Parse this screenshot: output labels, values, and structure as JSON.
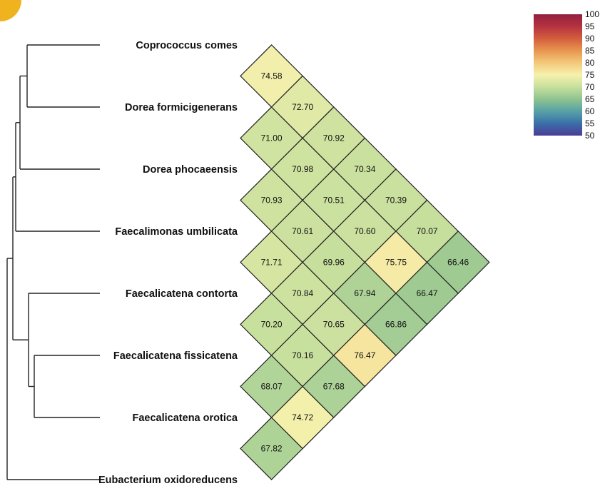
{
  "chart_data": {
    "type": "heatmap",
    "taxa": [
      "Coprococcus comes",
      "Dorea formicigenerans",
      "Dorea phocaeensis",
      "Faecalimonas umbilicata",
      "Faecalicatena contorta",
      "Faecalicatena fissicatena",
      "Faecalicatena orotica",
      "Eubacterium oxidoreducens"
    ],
    "pairs": [
      {
        "i": 0,
        "j": 1,
        "value": 74.58,
        "label": "74.58"
      },
      {
        "i": 1,
        "j": 2,
        "value": 71.0,
        "label": "71.00"
      },
      {
        "i": 0,
        "j": 2,
        "value": 72.7,
        "label": "72.70"
      },
      {
        "i": 2,
        "j": 3,
        "value": 70.93,
        "label": "70.93"
      },
      {
        "i": 1,
        "j": 3,
        "value": 70.98,
        "label": "70.98"
      },
      {
        "i": 0,
        "j": 3,
        "value": 70.92,
        "label": "70.92"
      },
      {
        "i": 3,
        "j": 4,
        "value": 71.71,
        "label": "71.71"
      },
      {
        "i": 2,
        "j": 4,
        "value": 70.61,
        "label": "70.61"
      },
      {
        "i": 1,
        "j": 4,
        "value": 70.51,
        "label": "70.51"
      },
      {
        "i": 0,
        "j": 4,
        "value": 70.34,
        "label": "70.34"
      },
      {
        "i": 4,
        "j": 5,
        "value": 70.2,
        "label": "70.20"
      },
      {
        "i": 3,
        "j": 5,
        "value": 70.84,
        "label": "70.84"
      },
      {
        "i": 2,
        "j": 5,
        "value": 69.96,
        "label": "69.96"
      },
      {
        "i": 1,
        "j": 5,
        "value": 70.6,
        "label": "70.60"
      },
      {
        "i": 0,
        "j": 5,
        "value": 70.39,
        "label": "70.39"
      },
      {
        "i": 5,
        "j": 6,
        "value": 68.07,
        "label": "68.07"
      },
      {
        "i": 4,
        "j": 6,
        "value": 70.16,
        "label": "70.16"
      },
      {
        "i": 3,
        "j": 6,
        "value": 70.65,
        "label": "70.65"
      },
      {
        "i": 2,
        "j": 6,
        "value": 67.94,
        "label": "67.94"
      },
      {
        "i": 1,
        "j": 6,
        "value": 75.75,
        "label": "75.75"
      },
      {
        "i": 0,
        "j": 6,
        "value": 70.07,
        "label": "70.07"
      },
      {
        "i": 6,
        "j": 7,
        "value": 67.82,
        "label": "67.82"
      },
      {
        "i": 5,
        "j": 7,
        "value": 74.72,
        "label": "74.72"
      },
      {
        "i": 4,
        "j": 7,
        "value": 67.68,
        "label": "67.68"
      },
      {
        "i": 3,
        "j": 7,
        "value": 76.47,
        "label": "76.47"
      },
      {
        "i": 2,
        "j": 7,
        "value": 66.86,
        "label": "66.86"
      },
      {
        "i": 1,
        "j": 7,
        "value": 66.47,
        "label": "66.47"
      },
      {
        "i": 0,
        "j": 7,
        "value": 66.46,
        "label": "66.46"
      }
    ],
    "color_scale": {
      "min": 50,
      "max": 100,
      "ticks": [
        "100",
        "95",
        "90",
        "85",
        "80",
        "75",
        "70",
        "65",
        "60",
        "55",
        "50"
      ],
      "stops": [
        {
          "value": 50,
          "color": "#4b3c95"
        },
        {
          "value": 55,
          "color": "#3a6ea9"
        },
        {
          "value": 60,
          "color": "#57a1a6"
        },
        {
          "value": 65,
          "color": "#8fc38f"
        },
        {
          "value": 70,
          "color": "#c6df9d"
        },
        {
          "value": 75,
          "color": "#f6f1ad"
        },
        {
          "value": 80,
          "color": "#f2c97b"
        },
        {
          "value": 85,
          "color": "#e8974f"
        },
        {
          "value": 90,
          "color": "#d35e3e"
        },
        {
          "value": 95,
          "color": "#b53340"
        },
        {
          "value": 100,
          "color": "#92203d"
        }
      ]
    },
    "dendrogram": {
      "note": "Hierarchical tree joining leaves 0-7 (order top to bottom)"
    }
  }
}
